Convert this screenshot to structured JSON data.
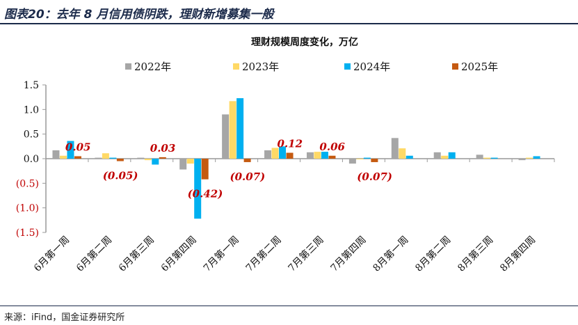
{
  "figure_title": "图表20：去年 8 月信用债阴跌，理财新增募集一般",
  "source": "来源：iFind，国金证券研究所",
  "chart_data": {
    "type": "bar",
    "title": "理财规模周度变化，万亿",
    "categories": [
      "6月第一周",
      "6月第二周",
      "6月第三周",
      "6月第四周",
      "7月第一周",
      "7月第二周",
      "7月第三周",
      "7月第四周",
      "8月第一周",
      "8月第二周",
      "8月第三周",
      "8月第四周"
    ],
    "series": [
      {
        "name": "2022年",
        "color": "#a6a6a6",
        "values": [
          0.17,
          0.02,
          0.02,
          -0.22,
          0.9,
          0.17,
          0.13,
          -0.1,
          0.42,
          0.13,
          0.08,
          -0.03
        ]
      },
      {
        "name": "2023年",
        "color": "#ffd966",
        "values": [
          0.06,
          0.11,
          -0.03,
          -0.1,
          1.17,
          0.22,
          0.14,
          0.0,
          0.21,
          0.06,
          0.02,
          0.02
        ]
      },
      {
        "name": "2024年",
        "color": "#00b0f0",
        "values": [
          0.36,
          0.02,
          -0.12,
          -1.22,
          1.23,
          0.25,
          0.14,
          0.02,
          0.06,
          0.13,
          0.02,
          0.05
        ]
      },
      {
        "name": "2025年",
        "color": "#c55a11",
        "values": [
          0.05,
          -0.05,
          0.03,
          -0.42,
          -0.07,
          0.12,
          0.06,
          -0.07,
          null,
          null,
          null,
          null
        ]
      }
    ],
    "data_labels": [
      "0.05",
      "(0.05)",
      "0.03",
      "(0.42)",
      "(0.07)",
      "0.12",
      "0.06",
      "(0.07)",
      null,
      null,
      null,
      null
    ],
    "ylim": [
      -1.5,
      1.5
    ],
    "yticks": [
      1.5,
      1.0,
      0.5,
      0.0,
      -0.5,
      -1.0,
      -1.5
    ],
    "ytick_labels": [
      "1.5",
      "1.0",
      "0.5",
      "0.0",
      "(0.5)",
      "(1.0)",
      "(1.5)"
    ],
    "negative_tick_color": "#c00000",
    "data_label_color": "#c00000",
    "legend": "top",
    "grid": false
  }
}
